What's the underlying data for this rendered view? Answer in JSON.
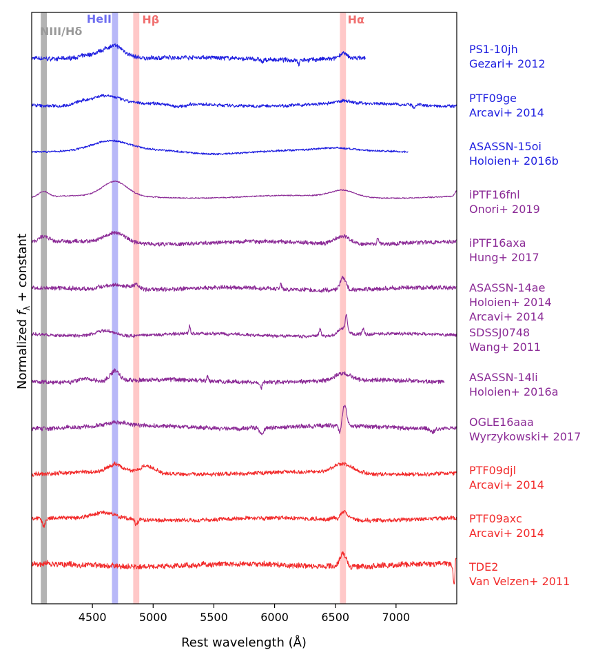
{
  "chart_data": {
    "type": "line",
    "title": "",
    "xlabel": "Rest wavelength (Å)",
    "ylabel_prefix": "Normalized ",
    "ylabel_symbol": "f",
    "ylabel_subscript": "λ",
    "ylabel_suffix": " + constant",
    "xlim": [
      4000,
      7500
    ],
    "x_ticks": [
      {
        "value": 4500,
        "label": "4500"
      },
      {
        "value": 5000,
        "label": "5000"
      },
      {
        "value": 5500,
        "label": "5500"
      },
      {
        "value": 6000,
        "label": "6000"
      },
      {
        "value": 6500,
        "label": "6500"
      },
      {
        "value": 7000,
        "label": "7000"
      }
    ],
    "y_ticks": "none",
    "line_bands": [
      {
        "label": "NIII/Hδ",
        "center": 4100,
        "width": 50,
        "color": "#b3b3b3",
        "label_color": "#999999"
      },
      {
        "label": "HeII",
        "center": 4686,
        "width": 50,
        "color": "#b8b8f8",
        "label_color": "#6e6ef0"
      },
      {
        "label": "Hβ",
        "center": 4861,
        "width": 50,
        "color": "#ffc8c8",
        "label_color": "#f07070"
      },
      {
        "label": "Hα",
        "center": 6563,
        "width": 50,
        "color": "#ffc8c8",
        "label_color": "#f07070"
      }
    ],
    "series": [
      {
        "name": "PS1-10jh",
        "reference": "Gezari+ 2012",
        "color": "#1f1fe0",
        "xrange": [
          4000,
          6750
        ],
        "noise": 0.22,
        "features": [
          [
            4686,
            0.9,
            80
          ],
          [
            4550,
            0.5,
            150
          ],
          [
            6563,
            0.45,
            30
          ],
          [
            6200,
            -0.4,
            8
          ],
          [
            5900,
            -0.3,
            10
          ]
        ]
      },
      {
        "name": "PTF09ge",
        "reference": "Arcavi+ 2014",
        "color": "#1f1fe0",
        "xrange": [
          4000,
          7500
        ],
        "noise": 0.16,
        "features": [
          [
            4600,
            0.85,
            120
          ],
          [
            4400,
            0.2,
            60
          ],
          [
            5200,
            -0.3,
            60
          ],
          [
            6563,
            0.25,
            60
          ],
          [
            7150,
            -0.3,
            10
          ]
        ]
      },
      {
        "name": "ASASSN-15oi",
        "reference": "Holoien+ 2016b",
        "color": "#1f1fe0",
        "xrange": [
          4000,
          7100
        ],
        "noise": 0.1,
        "features": [
          [
            4650,
            0.8,
            150
          ],
          [
            5500,
            -0.2,
            200
          ],
          [
            6500,
            0.15,
            100
          ]
        ]
      },
      {
        "name": "iPTF16fnl",
        "reference": "Onori+ 2019",
        "color": "#8b2a96",
        "xrange": [
          4000,
          7500
        ],
        "noise": 0.06,
        "features": [
          [
            4686,
            1.3,
            100
          ],
          [
            4100,
            0.5,
            40
          ],
          [
            6563,
            0.6,
            100
          ],
          [
            7500,
            0.5,
            15
          ]
        ]
      },
      {
        "name": "iPTF16axa",
        "reference": "Hung+ 2017",
        "color": "#8b2a96",
        "xrange": [
          4000,
          7500
        ],
        "noise": 0.2,
        "features": [
          [
            4686,
            0.9,
            90
          ],
          [
            4100,
            0.5,
            40
          ],
          [
            6563,
            0.7,
            60
          ],
          [
            6850,
            0.5,
            8
          ]
        ]
      },
      {
        "name": "ASASSN-14ae",
        "reference": "Holoien+ 2014",
        "reference2": "Arcavi+ 2014",
        "color": "#8b2a96",
        "xrange": [
          4000,
          7500
        ],
        "noise": 0.22,
        "features": [
          [
            4686,
            0.5,
            100
          ],
          [
            4861,
            0.4,
            30
          ],
          [
            6563,
            1.1,
            25
          ],
          [
            6050,
            0.5,
            8
          ]
        ]
      },
      {
        "name": "SDSSJ0748",
        "reference": "Wang+ 2011",
        "color": "#8b2a96",
        "xrange": [
          4000,
          7500
        ],
        "noise": 0.16,
        "features": [
          [
            4600,
            0.5,
            80
          ],
          [
            5300,
            0.8,
            6
          ],
          [
            6375,
            0.7,
            8
          ],
          [
            6563,
            0.6,
            40
          ],
          [
            6590,
            1.4,
            8
          ],
          [
            6730,
            0.5,
            8
          ]
        ]
      },
      {
        "name": "ASASSN-14li",
        "reference": "Holoien+ 2016a",
        "color": "#8b2a96",
        "xrange": [
          4000,
          7400
        ],
        "noise": 0.22,
        "features": [
          [
            4686,
            0.9,
            40
          ],
          [
            4450,
            0.3,
            60
          ],
          [
            5450,
            0.4,
            6
          ],
          [
            5890,
            -0.6,
            6
          ],
          [
            6563,
            0.6,
            60
          ]
        ]
      },
      {
        "name": "OGLE16aaa",
        "reference": "Wyrzykowski+ 2017",
        "color": "#8b2a96",
        "xrange": [
          4000,
          7500
        ],
        "noise": 0.22,
        "features": [
          [
            4686,
            0.3,
            100
          ],
          [
            5890,
            -0.6,
            15
          ],
          [
            6540,
            -0.8,
            12
          ],
          [
            6575,
            1.9,
            18
          ],
          [
            7300,
            -0.3,
            20
          ]
        ]
      },
      {
        "name": "PTF09djl",
        "reference": "Arcavi+ 2014",
        "color": "#f22b2b",
        "xrange": [
          4000,
          7500
        ],
        "noise": 0.2,
        "features": [
          [
            4686,
            0.7,
            60
          ],
          [
            4950,
            0.6,
            60
          ],
          [
            6563,
            0.8,
            80
          ]
        ]
      },
      {
        "name": "PTF09axc",
        "reference": "Arcavi+ 2014",
        "color": "#f22b2b",
        "xrange": [
          4000,
          7500
        ],
        "noise": 0.2,
        "features": [
          [
            4600,
            0.5,
            100
          ],
          [
            4100,
            -0.7,
            12
          ],
          [
            4861,
            -0.5,
            10
          ],
          [
            6563,
            0.7,
            50
          ],
          [
            6520,
            -0.4,
            15
          ]
        ]
      },
      {
        "name": "TDE2",
        "reference": "Van Velzen+ 2011",
        "color": "#f22b2b",
        "xrange": [
          4000,
          7500
        ],
        "noise": 0.28,
        "features": [
          [
            6563,
            1.2,
            25
          ],
          [
            7480,
            -2.2,
            8
          ],
          [
            7490,
            1.4,
            6
          ]
        ]
      }
    ]
  }
}
